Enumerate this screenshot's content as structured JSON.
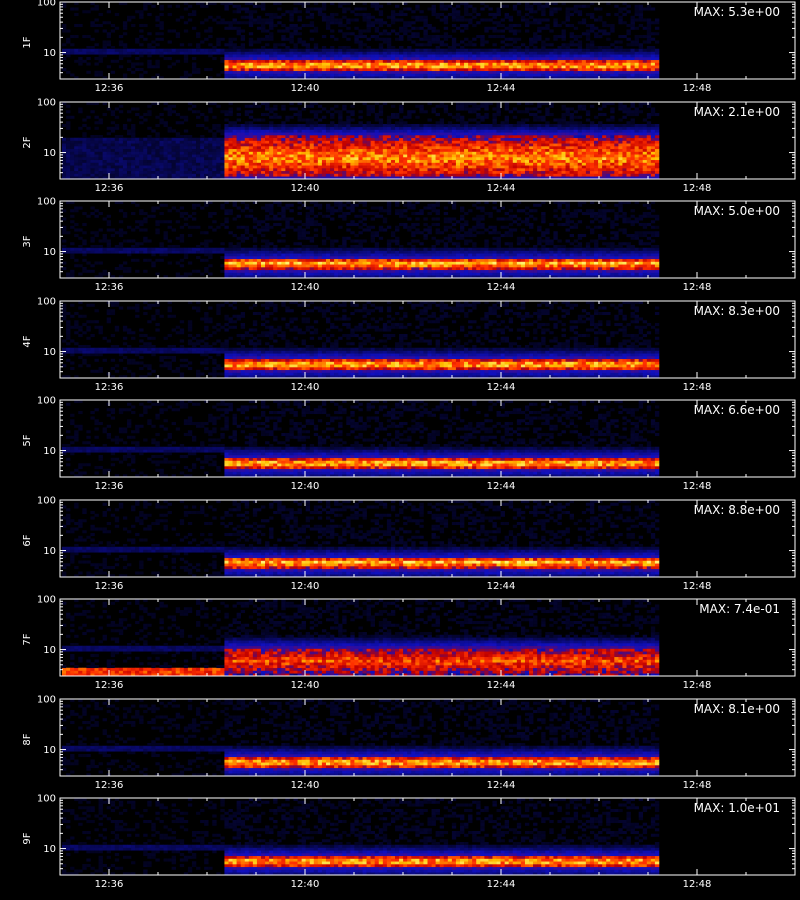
{
  "chart_data": {
    "type": "heatmap",
    "x_axis": {
      "unit": "time",
      "range": [
        "12:35",
        "12:50"
      ],
      "ticks": [
        "12:36",
        "12:40",
        "12:44",
        "12:48"
      ]
    },
    "y_axis": {
      "scale": "log",
      "range": [
        3,
        100
      ],
      "ticks": [
        10,
        100
      ],
      "tick_labels": [
        "10",
        "100"
      ]
    },
    "colormap": [
      "#000000",
      "#1010c0",
      "#c00000",
      "#ff3000",
      "#ffc000",
      "#ffff90"
    ],
    "xlabel": "",
    "panels": [
      {
        "label": "1F",
        "max_label": "MAX: 5.3e+00",
        "max_value": 5.3,
        "signal": {
          "start": "12:38:20",
          "end": "12:47:15",
          "band": [
            4.3,
            7.2
          ],
          "peak": 5.6,
          "intensity": 0.85
        }
      },
      {
        "label": "2F",
        "max_label": "MAX: 2.1e+00",
        "max_value": 2.1,
        "signal": {
          "start": "12:38:20",
          "end": "12:47:15",
          "band": [
            3.3,
            22
          ],
          "peak": 8,
          "intensity": 0.75
        }
      },
      {
        "label": "3F",
        "max_label": "MAX: 5.0e+00",
        "max_value": 5.0,
        "signal": {
          "start": "12:38:20",
          "end": "12:47:15",
          "band": [
            4.3,
            7.2
          ],
          "peak": 5.8,
          "intensity": 0.85
        }
      },
      {
        "label": "4F",
        "max_label": "MAX: 8.3e+00",
        "max_value": 8.3,
        "signal": {
          "start": "12:38:20",
          "end": "12:47:15",
          "band": [
            4.3,
            7.2
          ],
          "peak": 5.6,
          "intensity": 0.85
        }
      },
      {
        "label": "5F",
        "max_label": "MAX: 6.6e+00",
        "max_value": 6.6,
        "signal": {
          "start": "12:38:20",
          "end": "12:47:15",
          "band": [
            4.3,
            7.2
          ],
          "peak": 5.6,
          "intensity": 0.85
        }
      },
      {
        "label": "6F",
        "max_label": "MAX: 8.8e+00",
        "max_value": 8.8,
        "signal": {
          "start": "12:38:20",
          "end": "12:47:15",
          "band": [
            4.3,
            7.2
          ],
          "peak": 5.8,
          "intensity": 0.85
        }
      },
      {
        "label": "7F",
        "max_label": "MAX: 7.4e-01",
        "max_value": 0.74,
        "signal": {
          "start": "12:38:20",
          "end": "12:47:15",
          "band": [
            3,
            11
          ],
          "peak": 6,
          "intensity": 0.6
        }
      },
      {
        "label": "8F",
        "max_label": "MAX: 8.1e+00",
        "max_value": 8.1,
        "signal": {
          "start": "12:38:20",
          "end": "12:47:15",
          "band": [
            4.3,
            7.2
          ],
          "peak": 5.6,
          "intensity": 0.85
        }
      },
      {
        "label": "9F",
        "max_label": "MAX: 1.0e+01",
        "max_value": 10.0,
        "signal": {
          "start": "12:38:20",
          "end": "12:47:15",
          "band": [
            4.3,
            7.2
          ],
          "peak": 5.6,
          "intensity": 0.85
        }
      }
    ]
  }
}
